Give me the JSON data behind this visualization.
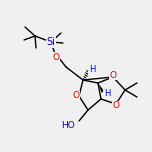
{
  "bg_color": "#f0f0f0",
  "bond_color": "#000000",
  "atom_colors": {
    "O": "#cc0000",
    "Si": "#0000cc",
    "H": "#0000cc",
    "C": "#000000",
    "HO": "#0000cc"
  },
  "bond_width": 1.0,
  "font_size": 6.5,
  "figsize": [
    1.52,
    1.52
  ],
  "dpi": 100
}
